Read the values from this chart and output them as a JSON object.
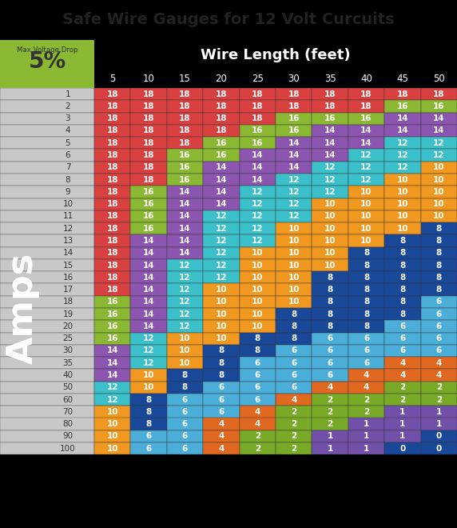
{
  "title": "Safe Wire Gauges for 12 Volt Curcuits",
  "col_header": "Wire Length (feet)",
  "row_header": "Amps",
  "voltage_drop_label": "Max Voltage Drop",
  "voltage_drop_value": "5%",
  "col_labels": [
    5,
    10,
    15,
    20,
    25,
    30,
    35,
    40,
    45,
    50
  ],
  "row_labels": [
    1,
    2,
    3,
    4,
    5,
    6,
    7,
    8,
    9,
    10,
    11,
    12,
    13,
    14,
    15,
    16,
    17,
    18,
    19,
    20,
    25,
    30,
    35,
    40,
    50,
    60,
    70,
    80,
    90,
    100
  ],
  "table": [
    [
      18,
      18,
      18,
      18,
      18,
      18,
      18,
      18,
      18,
      18
    ],
    [
      18,
      18,
      18,
      18,
      18,
      18,
      18,
      18,
      16,
      16
    ],
    [
      18,
      18,
      18,
      18,
      18,
      16,
      16,
      16,
      14,
      14
    ],
    [
      18,
      18,
      18,
      18,
      16,
      16,
      14,
      14,
      14,
      14
    ],
    [
      18,
      18,
      18,
      16,
      16,
      14,
      14,
      14,
      12,
      12
    ],
    [
      18,
      18,
      16,
      16,
      14,
      14,
      14,
      12,
      12,
      12
    ],
    [
      18,
      18,
      16,
      14,
      14,
      14,
      12,
      12,
      12,
      10
    ],
    [
      18,
      18,
      16,
      14,
      14,
      12,
      12,
      12,
      10,
      10
    ],
    [
      18,
      16,
      14,
      14,
      12,
      12,
      12,
      10,
      10,
      10
    ],
    [
      18,
      16,
      14,
      14,
      12,
      12,
      10,
      10,
      10,
      10
    ],
    [
      18,
      16,
      14,
      12,
      12,
      12,
      10,
      10,
      10,
      10
    ],
    [
      18,
      16,
      14,
      12,
      12,
      10,
      10,
      10,
      10,
      8
    ],
    [
      18,
      14,
      14,
      12,
      12,
      10,
      10,
      10,
      8,
      8
    ],
    [
      18,
      14,
      14,
      12,
      10,
      10,
      10,
      8,
      8,
      8
    ],
    [
      18,
      14,
      12,
      12,
      10,
      10,
      10,
      8,
      8,
      8
    ],
    [
      18,
      14,
      12,
      12,
      10,
      10,
      8,
      8,
      8,
      8
    ],
    [
      18,
      14,
      12,
      10,
      10,
      10,
      8,
      8,
      8,
      8
    ],
    [
      16,
      14,
      12,
      10,
      10,
      10,
      8,
      8,
      8,
      6
    ],
    [
      16,
      14,
      12,
      10,
      10,
      8,
      8,
      8,
      8,
      6
    ],
    [
      16,
      14,
      12,
      10,
      10,
      8,
      8,
      8,
      6,
      6
    ],
    [
      16,
      12,
      10,
      10,
      8,
      8,
      6,
      6,
      6,
      6
    ],
    [
      14,
      12,
      10,
      8,
      8,
      6,
      6,
      6,
      6,
      6
    ],
    [
      14,
      12,
      10,
      8,
      6,
      6,
      6,
      6,
      4,
      4
    ],
    [
      14,
      10,
      8,
      8,
      6,
      6,
      6,
      4,
      4,
      4
    ],
    [
      12,
      10,
      8,
      6,
      6,
      6,
      4,
      4,
      2,
      2
    ],
    [
      12,
      8,
      6,
      6,
      6,
      4,
      2,
      2,
      2,
      2
    ],
    [
      10,
      8,
      6,
      6,
      4,
      2,
      2,
      2,
      1,
      1
    ],
    [
      10,
      8,
      6,
      4,
      4,
      2,
      2,
      1,
      1,
      1
    ],
    [
      10,
      6,
      6,
      4,
      2,
      2,
      1,
      1,
      1,
      0
    ],
    [
      10,
      6,
      6,
      4,
      2,
      2,
      1,
      1,
      0,
      0
    ]
  ],
  "gauge_color_map": {
    "18": "#d94040",
    "16": "#8ab832",
    "14": "#8b55b0",
    "12": "#3bbfc8",
    "10": "#f09820",
    "8": "#1a4898",
    "6": "#4aaed8",
    "4": "#e06820",
    "2": "#78aa28",
    "1": "#7050a8",
    "0": "#1a4898"
  },
  "title_bg": "#ffffff",
  "title_color": "#222222",
  "title_fontsize": 14,
  "black_bg": "#000000",
  "green_bg": "#8ab832",
  "label_bg": "#d0d0d0",
  "col_header_row1_text_color": "#ffffff",
  "col_header_row2_text_color": "#ffffff",
  "cell_text_color": "#ffffff",
  "row_label_text_color": "#333333",
  "amps_text_color": "#ffffff",
  "voltage_drop_text_color": "#333333"
}
